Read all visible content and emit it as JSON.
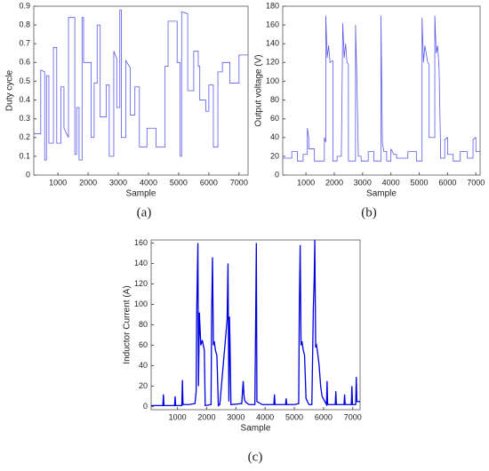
{
  "chart_data": [
    {
      "type": "line",
      "caption": "(a)",
      "ylabel": "Duty cycle",
      "xlabel": "Sample",
      "color": "#5a5ae6",
      "xlim": [
        200,
        7300
      ],
      "ylim": [
        0,
        0.9
      ],
      "xticks": [
        1000,
        2000,
        3000,
        4000,
        5000,
        6000,
        7000
      ],
      "yticks": [
        0,
        0.1,
        0.2,
        0.3,
        0.4,
        0.5,
        0.6,
        0.7,
        0.8,
        0.9
      ],
      "x": [
        200,
        430,
        430,
        560,
        560,
        620,
        620,
        700,
        700,
        850,
        850,
        960,
        960,
        1100,
        1100,
        1200,
        1200,
        1350,
        1350,
        1560,
        1560,
        1620,
        1620,
        1700,
        1700,
        1800,
        1800,
        1850,
        1850,
        2100,
        2100,
        2200,
        2200,
        2300,
        2300,
        2400,
        2400,
        2600,
        2600,
        2700,
        2700,
        2850,
        2850,
        2950,
        2950,
        3050,
        3050,
        3100,
        3100,
        3250,
        3250,
        3400,
        3400,
        3550,
        3550,
        3700,
        3700,
        3950,
        3950,
        4250,
        4250,
        4550,
        4550,
        4650,
        4650,
        4950,
        4950,
        5050,
        5050,
        5100,
        5100,
        5300,
        5300,
        5500,
        5500,
        5650,
        5650,
        5700,
        5700,
        5900,
        5900,
        6000,
        6000,
        6150,
        6150,
        6300,
        6300,
        6450,
        6450,
        6700,
        6700,
        7000,
        7000,
        7300
      ],
      "values": [
        0.22,
        0.22,
        0.56,
        0.55,
        0.08,
        0.08,
        0.53,
        0.53,
        0.17,
        0.17,
        0.68,
        0.68,
        0.17,
        0.17,
        0.47,
        0.47,
        0.25,
        0.2,
        0.84,
        0.84,
        0.11,
        0.11,
        0.36,
        0.36,
        0.08,
        0.08,
        0.84,
        0.84,
        0.6,
        0.6,
        0.2,
        0.2,
        0.49,
        0.49,
        0.8,
        0.8,
        0.31,
        0.31,
        0.48,
        0.48,
        0.1,
        0.1,
        0.66,
        0.62,
        0.36,
        0.36,
        0.88,
        0.88,
        0.2,
        0.2,
        0.61,
        0.57,
        0.32,
        0.32,
        0.47,
        0.47,
        0.15,
        0.15,
        0.25,
        0.25,
        0.15,
        0.15,
        0.58,
        0.58,
        0.82,
        0.82,
        0.6,
        0.6,
        0.1,
        0.1,
        0.87,
        0.86,
        0.45,
        0.45,
        0.66,
        0.66,
        0.58,
        0.58,
        0.4,
        0.4,
        0.34,
        0.34,
        0.48,
        0.48,
        0.15,
        0.15,
        0.55,
        0.55,
        0.6,
        0.6,
        0.49,
        0.49,
        0.64,
        0.64
      ]
    },
    {
      "type": "line",
      "caption": "(b)",
      "ylabel": "Output voltage (V)",
      "xlabel": "Sample",
      "color": "#5a5ae6",
      "xlim": [
        180,
        7150
      ],
      "ylim": [
        0,
        180
      ],
      "xticks": [
        1000,
        2000,
        3000,
        4000,
        5000,
        6000,
        7000
      ],
      "yticks": [
        0,
        20,
        40,
        60,
        80,
        100,
        120,
        140,
        160,
        180
      ],
      "x": [
        180,
        500,
        500,
        700,
        700,
        900,
        900,
        1050,
        1050,
        1100,
        1100,
        1300,
        1300,
        1650,
        1650,
        1700,
        1700,
        1750,
        1800,
        1850,
        1950,
        1950,
        2100,
        2100,
        2250,
        2250,
        2300,
        2350,
        2400,
        2450,
        2500,
        2500,
        2750,
        2750,
        2800,
        2850,
        2950,
        2950,
        3200,
        3200,
        3400,
        3400,
        3650,
        3650,
        3700,
        3750,
        3850,
        3850,
        4000,
        4000,
        4100,
        4200,
        4200,
        4600,
        4600,
        4900,
        4900,
        5100,
        5100,
        5150,
        5200,
        5300,
        5350,
        5350,
        5550,
        5550,
        5600,
        5650,
        5700,
        5750,
        5750,
        5900,
        5900,
        6000,
        6000,
        6200,
        6200,
        6450,
        6450,
        6700,
        6700,
        6900,
        6900,
        7000,
        7000,
        7150
      ],
      "values": [
        18,
        18,
        25,
        25,
        15,
        15,
        22,
        22,
        50,
        40,
        28,
        28,
        15,
        15,
        40,
        35,
        170,
        125,
        138,
        120,
        122,
        15,
        15,
        20,
        20,
        22,
        162,
        125,
        140,
        120,
        118,
        15,
        15,
        160,
        100,
        20,
        20,
        15,
        15,
        25,
        25,
        15,
        15,
        170,
        35,
        25,
        25,
        15,
        15,
        28,
        22,
        22,
        18,
        18,
        25,
        25,
        15,
        15,
        168,
        120,
        138,
        120,
        118,
        40,
        40,
        170,
        130,
        138,
        115,
        35,
        18,
        18,
        38,
        40,
        22,
        22,
        15,
        15,
        25,
        25,
        18,
        18,
        38,
        40,
        25,
        25
      ]
    },
    {
      "type": "line",
      "caption": "(c)",
      "ylabel": "Inductor Current (A)",
      "xlabel": "Sample",
      "color": "#0000dd",
      "xlim": [
        100,
        7250
      ],
      "ylim": [
        -3,
        163
      ],
      "xticks": [
        1000,
        2000,
        3000,
        4000,
        5000,
        6000,
        7000
      ],
      "yticks": [
        0,
        20,
        40,
        60,
        80,
        100,
        120,
        140,
        160
      ],
      "x": [
        100,
        500,
        520,
        540,
        700,
        900,
        920,
        940,
        1100,
        1150,
        1170,
        1190,
        1400,
        1600,
        1640,
        1660,
        1700,
        1720,
        1750,
        1800,
        1850,
        1900,
        1920,
        1950,
        2150,
        2170,
        2200,
        2230,
        2260,
        2300,
        2350,
        2400,
        2450,
        2700,
        2730,
        2760,
        2780,
        2800,
        2830,
        3200,
        3250,
        3280,
        3300,
        3350,
        3450,
        3650,
        3680,
        3700,
        3720,
        3900,
        4300,
        4320,
        4340,
        4700,
        4720,
        4740,
        5000,
        5150,
        5170,
        5200,
        5230,
        5260,
        5300,
        5350,
        5400,
        5450,
        5500,
        5600,
        5650,
        5680,
        5700,
        5730,
        5760,
        5800,
        5850,
        5900,
        5950,
        6100,
        6120,
        6140,
        6400,
        6420,
        6440,
        6700,
        6720,
        6740,
        6950,
        6970,
        6990,
        7100,
        7120,
        7140,
        7250
      ],
      "values": [
        1,
        1,
        12,
        1,
        1,
        1,
        10,
        1,
        1,
        1,
        26,
        2,
        2,
        3,
        15,
        95,
        160,
        20,
        92,
        60,
        65,
        58,
        55,
        1,
        2,
        90,
        146,
        60,
        64,
        55,
        50,
        1,
        2,
        85,
        140,
        5,
        88,
        60,
        2,
        3,
        25,
        10,
        6,
        4,
        2,
        2,
        94,
        160,
        5,
        2,
        2,
        12,
        2,
        2,
        8,
        2,
        2,
        3,
        95,
        158,
        60,
        64,
        56,
        50,
        8,
        5,
        2,
        2,
        95,
        125,
        163,
        58,
        60,
        52,
        40,
        20,
        10,
        2,
        25,
        2,
        2,
        15,
        2,
        2,
        12,
        2,
        2,
        20,
        2,
        2,
        29,
        5,
        5
      ]
    }
  ]
}
